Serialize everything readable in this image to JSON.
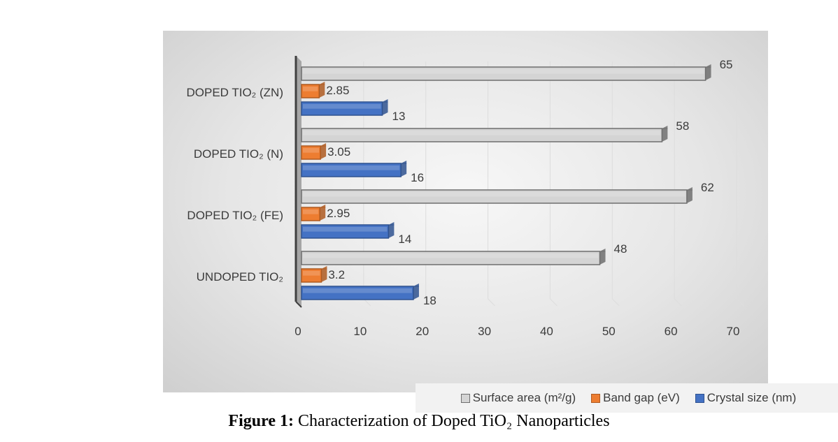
{
  "chart_data": {
    "type": "bar",
    "orientation": "horizontal",
    "categories": [
      "UNDOPED TIO₂",
      "DOPED TIO₂ (FE)",
      "DOPED TIO₂ (N)",
      "DOPED TIO₂ (ZN)"
    ],
    "series": [
      {
        "name": "Surface area (m²/g)",
        "values": [
          48,
          62,
          58,
          65
        ],
        "labels": [
          "48",
          "62",
          "58",
          "65"
        ],
        "color": "#d4d4d4",
        "stroke": "#6e6e6e"
      },
      {
        "name": "Band gap (eV)",
        "values": [
          3.2,
          2.95,
          3.05,
          2.85
        ],
        "labels": [
          "3.2",
          "2.95",
          "3.05",
          "2.85"
        ],
        "color": "#ed7d31",
        "stroke": "#ae5a21"
      },
      {
        "name": "Crystal size (nm)",
        "values": [
          18,
          14,
          16,
          13
        ],
        "labels": [
          "18",
          "14",
          "16",
          "13"
        ],
        "color": "#4472c4",
        "stroke": "#2f528f"
      }
    ],
    "xticks": [
      "0",
      "10",
      "20",
      "30",
      "40",
      "50",
      "60",
      "70"
    ],
    "xlim": [
      0,
      70
    ],
    "grid": true,
    "legend_position": "bottom",
    "style": "3d-clustered-bar"
  },
  "caption": {
    "bold": "Figure 1:",
    "text": " Characterization of Doped TiO₂ Nanoparticles"
  }
}
